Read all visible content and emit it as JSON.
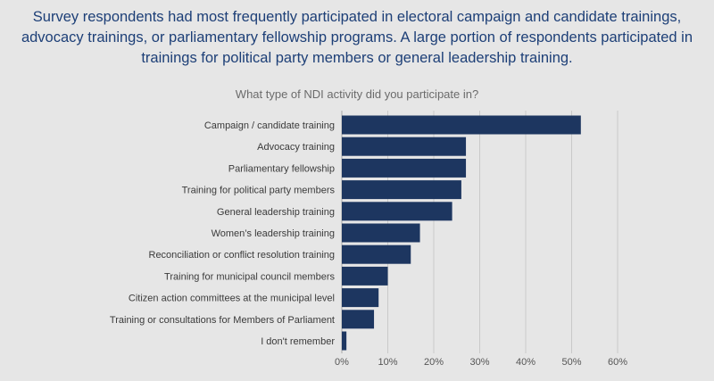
{
  "headline": "Survey respondents had most frequently participated in electoral campaign and candidate trainings, advocacy trainings, or parliamentary fellowship programs. A large portion of respondents participated in trainings for political party members or general leadership training.",
  "chart_data": {
    "type": "bar",
    "orientation": "horizontal",
    "title": "What type of NDI activity did you participate in?",
    "categories": [
      "Campaign / candidate training",
      "Advocacy training",
      "Parliamentary fellowship",
      "Training for political party members",
      "General leadership training",
      "Women’s leadership training",
      "Reconciliation or conflict resolution training",
      "Training for municipal council members",
      "Citizen action committees at the municipal level",
      "Training or consultations for Members of Parliament",
      "I don't remember"
    ],
    "values": [
      52,
      27,
      27,
      26,
      24,
      17,
      15,
      10,
      8,
      7,
      1
    ],
    "xlim": [
      0,
      60
    ],
    "xticks": [
      "0%",
      "10%",
      "20%",
      "30%",
      "40%",
      "50%",
      "60%"
    ],
    "grid": true,
    "bar_color": "#1d3660"
  }
}
